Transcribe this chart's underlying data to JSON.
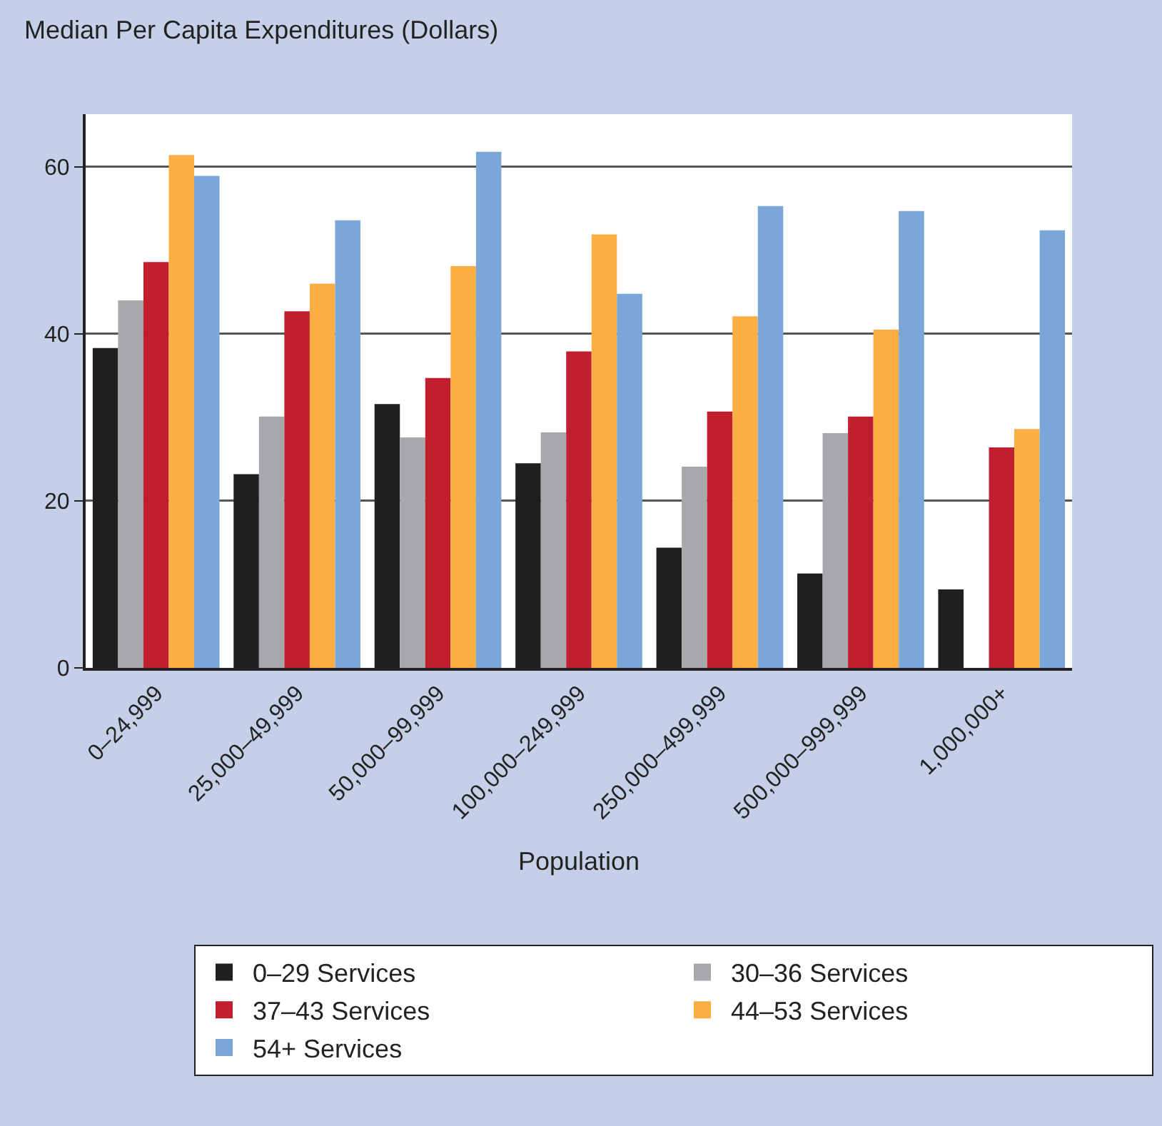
{
  "chart_data": {
    "type": "bar",
    "ylabel": "Median Per Capita Expenditures (Dollars)",
    "xlabel": "Population",
    "categories": [
      "0–24,999",
      "25,000–49,999",
      "50,000–99,999",
      "100,000–249,999",
      "250,000–499,999",
      "500,000–999,999",
      "1,000,000+"
    ],
    "series": [
      {
        "name": "0–29 Services",
        "color": "#201f20",
        "values": [
          38.3,
          23.2,
          31.6,
          24.5,
          14.4,
          11.3,
          9.4
        ]
      },
      {
        "name": "30–36 Services",
        "color": "#a7a8ab",
        "values": [
          44.0,
          30.1,
          27.6,
          28.2,
          24.1,
          28.1,
          null
        ]
      },
      {
        "name": "37–43 Services",
        "color": "#c01f2f",
        "values": [
          48.6,
          42.7,
          34.7,
          37.9,
          30.7,
          30.1,
          26.4
        ]
      },
      {
        "name": "44–53 Services",
        "color": "#fbaf43",
        "values": [
          61.4,
          46.0,
          48.1,
          51.9,
          42.1,
          40.5,
          28.6
        ]
      },
      {
        "name": "54+ Services",
        "color": "#7ba6d8",
        "values": [
          58.9,
          53.6,
          61.8,
          44.8,
          55.3,
          54.7,
          52.4
        ]
      }
    ],
    "ylim": [
      0,
      66.3
    ],
    "yticks": [
      0,
      20,
      40,
      60
    ],
    "grid": "y",
    "legend": "bottom"
  }
}
